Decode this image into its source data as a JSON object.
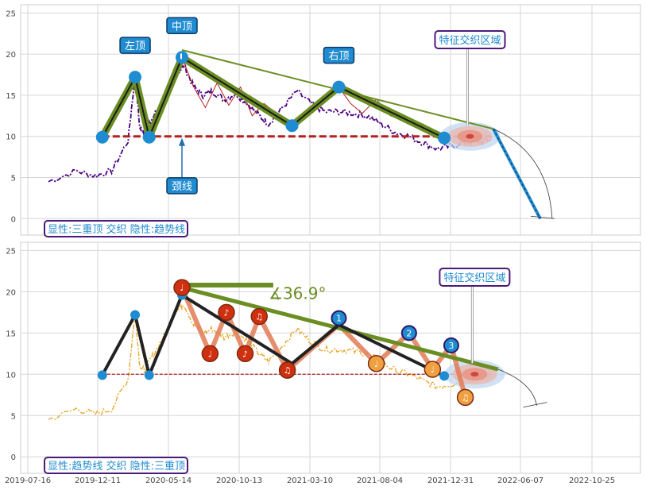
{
  "x_ticks": [
    "2019-07-16",
    "2019-12-11",
    "2020-05-14",
    "2020-10-13",
    "2021-03-10",
    "2021-08-04",
    "2021-12-31",
    "2022-06-07",
    "2022-10-25"
  ],
  "chart_data": [
    {
      "type": "line",
      "panel": "top",
      "ylim": [
        -2,
        26
      ],
      "y_ticks": [
        0,
        5,
        10,
        15,
        20,
        25
      ],
      "xlim_days": [
        0,
        1230
      ],
      "price_series": {
        "color": "#4b0082",
        "style": "dash-dot",
        "trend_ref": [
          [
            0,
            4.5
          ],
          [
            60,
            5.8
          ],
          [
            100,
            5.2
          ],
          [
            135,
            5.8
          ],
          [
            170,
            9.5
          ],
          [
            185,
            17.5
          ],
          [
            195,
            11.0
          ],
          [
            205,
            10.5
          ],
          [
            225,
            12.5
          ],
          [
            250,
            15.0
          ],
          [
            270,
            17.5
          ],
          [
            290,
            18.5
          ],
          [
            310,
            16.0
          ],
          [
            330,
            15.0
          ],
          [
            350,
            15.5
          ],
          [
            375,
            14.5
          ],
          [
            400,
            15.2
          ],
          [
            425,
            14.0
          ],
          [
            450,
            12.5
          ],
          [
            470,
            11.5
          ],
          [
            500,
            13.5
          ],
          [
            530,
            15.5
          ],
          [
            560,
            14.0
          ],
          [
            590,
            13.0
          ],
          [
            620,
            13.0
          ],
          [
            650,
            12.8
          ],
          [
            680,
            12.5
          ],
          [
            710,
            11.5
          ],
          [
            740,
            10.5
          ],
          [
            770,
            10.0
          ],
          [
            800,
            9.2
          ],
          [
            830,
            8.5
          ],
          [
            860,
            8.8
          ],
          [
            890,
            9.2
          ],
          [
            920,
            9.3
          ],
          [
            945,
            9.6
          ]
        ]
      },
      "pattern_polyline": {
        "color": "#6b8e23",
        "points": [
          [
            115,
            9.9
          ],
          [
            185,
            17.2
          ],
          [
            215,
            9.9
          ],
          [
            285,
            19.6
          ],
          [
            520,
            11.3
          ],
          [
            620,
            16.0
          ],
          [
            845,
            9.8
          ]
        ]
      },
      "pattern_nodes": [
        [
          115,
          9.9
        ],
        [
          185,
          17.2
        ],
        [
          215,
          9.9
        ],
        [
          285,
          19.6
        ],
        [
          520,
          11.3
        ],
        [
          620,
          16.0
        ],
        [
          845,
          9.8
        ]
      ],
      "neckline": {
        "y": 10.0,
        "x_from": 115,
        "x_to": 950,
        "color": "#b22222"
      },
      "trendline": {
        "from": [
          285,
          20.5
        ],
        "to": [
          950,
          10.9
        ],
        "color": "#6b8e23"
      },
      "projection": {
        "from": [
          950,
          10.9
        ],
        "to": [
          1050,
          0.0
        ],
        "color": "#1f8bd0"
      },
      "inner_zigzag": {
        "color": "#b22222",
        "points": [
          [
            285,
            19.6
          ],
          [
            310,
            16.0
          ],
          [
            335,
            13.5
          ],
          [
            360,
            16.5
          ],
          [
            385,
            13.8
          ],
          [
            410,
            16.0
          ],
          [
            435,
            12.5
          ],
          [
            460,
            14.0
          ],
          [
            520,
            11.3
          ],
          [
            620,
            16.0
          ],
          [
            645,
            14.0
          ],
          [
            670,
            12.8
          ],
          [
            700,
            14.5
          ],
          [
            730,
            12.5
          ],
          [
            760,
            12.0
          ],
          [
            800,
            11.5
          ],
          [
            845,
            9.8
          ]
        ]
      },
      "zone": {
        "center": [
          900,
          10.0
        ],
        "label": "特征交织区域"
      },
      "labels": [
        {
          "text": "左顶",
          "at": [
            185,
            17.2
          ]
        },
        {
          "text": "中顶",
          "at": [
            285,
            19.6
          ]
        },
        {
          "text": "右顶",
          "at": [
            620,
            16.0
          ]
        },
        {
          "text": "颈线",
          "at": [
            285,
            10.0
          ]
        }
      ],
      "caption": "显性:三重顶 交织 隐性:趋势线"
    },
    {
      "type": "line",
      "panel": "bottom",
      "ylim": [
        -2,
        26
      ],
      "y_ticks": [
        0,
        5,
        10,
        15,
        20,
        25
      ],
      "xlim_days": [
        0,
        1230
      ],
      "price_series": {
        "color": "#e8a92c",
        "style": "dash-dot"
      },
      "black_polyline": {
        "color": "#222222",
        "points": [
          [
            115,
            9.9
          ],
          [
            185,
            17.2
          ],
          [
            215,
            9.9
          ],
          [
            285,
            19.6
          ],
          [
            520,
            11.3
          ],
          [
            620,
            16.0
          ],
          [
            845,
            9.8
          ]
        ]
      },
      "neckline": {
        "y": 10.0,
        "x_from": 115,
        "x_to": 950,
        "color": "#b22222"
      },
      "trendline": {
        "from": [
          285,
          20.5
        ],
        "to": [
          960,
          10.6
        ],
        "color": "#6b8e23"
      },
      "flat_line": {
        "from": [
          285,
          20.8
        ],
        "to": [
          480,
          20.8
        ],
        "color": "#6b8e23"
      },
      "angle_label": "∡36.9°",
      "zigzag": {
        "color": "#e07b56",
        "points": [
          [
            285,
            20.5
          ],
          [
            345,
            12.5
          ],
          [
            380,
            17.5
          ],
          [
            420,
            12.5
          ],
          [
            450,
            17.0
          ],
          [
            510,
            10.5
          ],
          [
            620,
            16.0
          ],
          [
            700,
            11.3
          ],
          [
            770,
            15.0
          ],
          [
            820,
            10.6
          ],
          [
            860,
            13.5
          ],
          [
            890,
            7.2
          ]
        ]
      },
      "notes": [
        {
          "at": [
            285,
            20.5
          ],
          "color": "#d03010",
          "glyph": "♩"
        },
        {
          "at": [
            345,
            12.5
          ],
          "color": "#d03010",
          "glyph": "♩"
        },
        {
          "at": [
            380,
            17.5
          ],
          "color": "#d03010",
          "glyph": "♪"
        },
        {
          "at": [
            420,
            12.5
          ],
          "color": "#d03010",
          "glyph": "♪"
        },
        {
          "at": [
            450,
            17.0
          ],
          "color": "#d03010",
          "glyph": "♫"
        },
        {
          "at": [
            510,
            10.5
          ],
          "color": "#d03010",
          "glyph": "♫"
        },
        {
          "at": [
            700,
            11.3
          ],
          "color": "#f0a040",
          "glyph": "♩"
        },
        {
          "at": [
            820,
            10.6
          ],
          "color": "#f0a040",
          "glyph": "♩"
        },
        {
          "at": [
            890,
            7.2
          ],
          "color": "#f0a040",
          "glyph": "♫"
        }
      ],
      "numbered": [
        {
          "at": [
            620,
            16.8
          ],
          "text": "1"
        },
        {
          "at": [
            770,
            15.0
          ],
          "text": "2"
        },
        {
          "at": [
            860,
            13.5
          ],
          "text": "3"
        }
      ],
      "nodes": [
        [
          115,
          9.9
        ],
        [
          185,
          17.2
        ],
        [
          215,
          9.9
        ],
        [
          285,
          19.6
        ],
        [
          845,
          9.8
        ]
      ],
      "zone": {
        "center": [
          910,
          10.0
        ],
        "label": "特征交织区域"
      },
      "caption": "显性:趋势线 交织 隐性:三重顶"
    }
  ]
}
